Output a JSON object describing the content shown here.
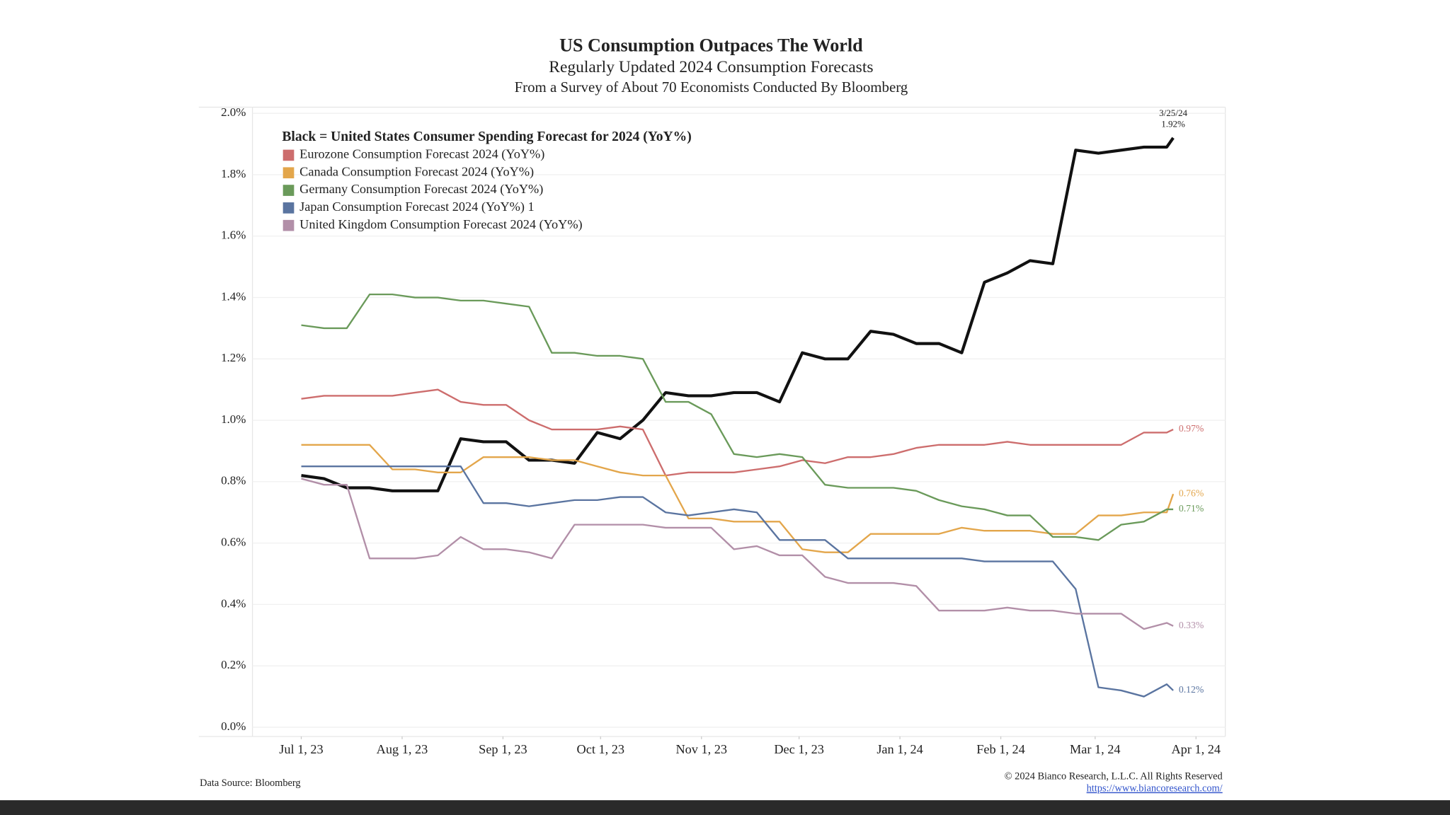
{
  "chart_data": {
    "type": "line",
    "title": "US Consumption Outpaces The World",
    "subtitle": "Regularly Updated 2024 Consumption Forecasts",
    "subtitle2": "From a Survey of About 70 Economists Conducted By Bloomberg",
    "source": "Data Source: Bloomberg",
    "copyright": "© 2024 Bianco Research, L.L.C. All Rights Reserved",
    "url": "https://www.biancoresearch.com/",
    "annotation": "3/25/24",
    "grid": true,
    "legend": "top-left",
    "xlim": [
      "2023-06-16",
      "2024-04-10"
    ],
    "xticks": [
      {
        "value": "2023-07-01",
        "label": "Jul 1, 23"
      },
      {
        "value": "2023-08-01",
        "label": "Aug 1, 23"
      },
      {
        "value": "2023-09-01",
        "label": "Sep 1, 23"
      },
      {
        "value": "2023-10-01",
        "label": "Oct 1, 23"
      },
      {
        "value": "2023-11-01",
        "label": "Nov 1, 23"
      },
      {
        "value": "2023-12-01",
        "label": "Dec 1, 23"
      },
      {
        "value": "2024-01-01",
        "label": "Jan 1, 24"
      },
      {
        "value": "2024-02-01",
        "label": "Feb 1, 24"
      },
      {
        "value": "2024-03-01",
        "label": "Mar 1, 24"
      },
      {
        "value": "2024-04-01",
        "label": "Apr 1, 24"
      }
    ],
    "ylim": [
      -0.03,
      2.02
    ],
    "yticks": [
      {
        "value": 0,
        "label": "0.0%"
      },
      {
        "value": 0.2,
        "label": "0.2%"
      },
      {
        "value": 0.4,
        "label": "0.4%"
      },
      {
        "value": 0.6,
        "label": "0.6%"
      },
      {
        "value": 0.8,
        "label": "0.8%"
      },
      {
        "value": 1.0,
        "label": "1.0%"
      },
      {
        "value": 1.2,
        "label": "1.2%"
      },
      {
        "value": 1.4,
        "label": "1.4%"
      },
      {
        "value": 1.6,
        "label": "1.6%"
      },
      {
        "value": 1.8,
        "label": "1.8%"
      },
      {
        "value": 2.0,
        "label": "2.0%"
      }
    ],
    "x": [
      "2023-07-01",
      "2023-07-08",
      "2023-07-15",
      "2023-07-22",
      "2023-07-29",
      "2023-08-05",
      "2023-08-12",
      "2023-08-19",
      "2023-08-26",
      "2023-09-02",
      "2023-09-09",
      "2023-09-16",
      "2023-09-23",
      "2023-09-30",
      "2023-10-07",
      "2023-10-14",
      "2023-10-21",
      "2023-10-28",
      "2023-11-04",
      "2023-11-11",
      "2023-11-18",
      "2023-11-25",
      "2023-12-02",
      "2023-12-09",
      "2023-12-16",
      "2023-12-23",
      "2023-12-30",
      "2024-01-06",
      "2024-01-13",
      "2024-01-20",
      "2024-01-27",
      "2024-02-03",
      "2024-02-10",
      "2024-02-17",
      "2024-02-24",
      "2024-03-02",
      "2024-03-09",
      "2024-03-16",
      "2024-03-23",
      "2024-03-25"
    ],
    "series": [
      {
        "name": "Black = United States Consumer Spending Forecast for 2024 (YoY%)",
        "color": "#111111",
        "width": 3.2,
        "values": [
          0.82,
          0.81,
          0.78,
          0.78,
          0.77,
          0.77,
          0.77,
          0.94,
          0.93,
          0.93,
          0.87,
          0.87,
          0.86,
          0.96,
          0.94,
          1.0,
          1.09,
          1.08,
          1.08,
          1.09,
          1.09,
          1.06,
          1.22,
          1.2,
          1.2,
          1.29,
          1.28,
          1.25,
          1.25,
          1.22,
          1.45,
          1.48,
          1.52,
          1.51,
          1.88,
          1.87,
          1.88,
          1.89,
          1.89,
          1.92
        ],
        "value_labels": [
          null,
          null,
          null,
          null,
          null,
          null,
          null,
          null,
          null,
          null,
          null,
          null,
          null,
          null,
          null,
          null,
          null,
          null,
          null,
          null,
          null,
          null,
          null,
          null,
          null,
          null,
          null,
          null,
          null,
          null,
          null,
          null,
          null,
          null,
          null,
          null,
          null,
          null,
          null,
          "1.92%"
        ]
      },
      {
        "name": "Eurozone Consumption Forecast 2024 (YoY%)",
        "color": "#cd6d6d",
        "width": 1.8,
        "values": [
          1.07,
          1.08,
          1.08,
          1.08,
          1.08,
          1.09,
          1.1,
          1.06,
          1.05,
          1.05,
          1.0,
          0.97,
          0.97,
          0.97,
          0.98,
          0.97,
          0.82,
          0.83,
          0.83,
          0.83,
          0.84,
          0.85,
          0.87,
          0.86,
          0.88,
          0.88,
          0.89,
          0.91,
          0.92,
          0.92,
          0.92,
          0.93,
          0.92,
          0.92,
          0.92,
          0.92,
          0.92,
          0.96,
          0.96,
          0.97
        ],
        "value_labels": [
          null,
          null,
          null,
          null,
          null,
          null,
          null,
          null,
          null,
          null,
          null,
          null,
          null,
          null,
          null,
          null,
          null,
          null,
          null,
          null,
          null,
          null,
          null,
          null,
          null,
          null,
          null,
          null,
          null,
          null,
          null,
          null,
          null,
          null,
          null,
          null,
          null,
          null,
          null,
          "0.97%"
        ]
      },
      {
        "name": "Canada Consumption Forecast 2024 (YoY%)",
        "color": "#e3a64b",
        "width": 1.8,
        "values": [
          0.92,
          0.92,
          0.92,
          0.92,
          0.84,
          0.84,
          0.83,
          0.83,
          0.88,
          0.88,
          0.88,
          0.87,
          0.87,
          0.85,
          0.83,
          0.82,
          0.82,
          0.68,
          0.68,
          0.67,
          0.67,
          0.67,
          0.58,
          0.57,
          0.57,
          0.63,
          0.63,
          0.63,
          0.63,
          0.65,
          0.64,
          0.64,
          0.64,
          0.63,
          0.63,
          0.69,
          0.69,
          0.7,
          0.7,
          0.76
        ],
        "value_labels": [
          null,
          null,
          null,
          null,
          null,
          null,
          null,
          null,
          null,
          null,
          null,
          null,
          null,
          null,
          null,
          null,
          null,
          null,
          null,
          null,
          null,
          null,
          null,
          null,
          null,
          null,
          null,
          null,
          null,
          null,
          null,
          null,
          null,
          null,
          null,
          null,
          null,
          null,
          null,
          "0.76%"
        ]
      },
      {
        "name": "Germany Consumption Forecast 2024 (YoY%)",
        "color": "#6a9a5a",
        "width": 1.8,
        "values": [
          1.31,
          1.3,
          1.3,
          1.41,
          1.41,
          1.4,
          1.4,
          1.39,
          1.39,
          1.38,
          1.37,
          1.22,
          1.22,
          1.21,
          1.21,
          1.2,
          1.06,
          1.06,
          1.02,
          0.89,
          0.88,
          0.89,
          0.88,
          0.79,
          0.78,
          0.78,
          0.78,
          0.77,
          0.74,
          0.72,
          0.71,
          0.69,
          0.69,
          0.62,
          0.62,
          0.61,
          0.66,
          0.67,
          0.71,
          0.71
        ],
        "value_labels": [
          null,
          null,
          null,
          null,
          null,
          null,
          null,
          null,
          null,
          null,
          null,
          null,
          null,
          null,
          null,
          null,
          null,
          null,
          null,
          null,
          null,
          null,
          null,
          null,
          null,
          null,
          null,
          null,
          null,
          null,
          null,
          null,
          null,
          null,
          null,
          null,
          null,
          null,
          null,
          "0.71%"
        ]
      },
      {
        "name": "Japan Consumption Forecast 2024 (YoY%) 1",
        "color": "#5a74a0",
        "width": 1.8,
        "values": [
          0.85,
          0.85,
          0.85,
          0.85,
          0.85,
          0.85,
          0.85,
          0.85,
          0.73,
          0.73,
          0.72,
          0.73,
          0.74,
          0.74,
          0.75,
          0.75,
          0.7,
          0.69,
          0.7,
          0.71,
          0.7,
          0.61,
          0.61,
          0.61,
          0.55,
          0.55,
          0.55,
          0.55,
          0.55,
          0.55,
          0.54,
          0.54,
          0.54,
          0.54,
          0.45,
          0.13,
          0.12,
          0.1,
          0.14,
          0.12
        ],
        "value_labels": [
          null,
          null,
          null,
          null,
          null,
          null,
          null,
          null,
          null,
          null,
          null,
          null,
          null,
          null,
          null,
          null,
          null,
          null,
          null,
          null,
          null,
          null,
          null,
          null,
          null,
          null,
          null,
          null,
          null,
          null,
          null,
          null,
          null,
          null,
          null,
          null,
          null,
          null,
          null,
          "0.12%"
        ]
      },
      {
        "name": "United Kingdom Consumption Forecast 2024 (YoY%)",
        "color": "#b28fa8",
        "width": 1.8,
        "values": [
          0.81,
          0.79,
          0.79,
          0.55,
          0.55,
          0.55,
          0.56,
          0.62,
          0.58,
          0.58,
          0.57,
          0.55,
          0.66,
          0.66,
          0.66,
          0.66,
          0.65,
          0.65,
          0.65,
          0.58,
          0.59,
          0.56,
          0.56,
          0.49,
          0.47,
          0.47,
          0.47,
          0.46,
          0.38,
          0.38,
          0.38,
          0.39,
          0.38,
          0.38,
          0.37,
          0.37,
          0.37,
          0.32,
          0.34,
          0.33
        ],
        "value_labels": [
          null,
          null,
          null,
          null,
          null,
          null,
          null,
          null,
          null,
          null,
          null,
          null,
          null,
          null,
          null,
          null,
          null,
          null,
          null,
          null,
          null,
          null,
          null,
          null,
          null,
          null,
          null,
          null,
          null,
          null,
          null,
          null,
          null,
          null,
          null,
          null,
          null,
          null,
          null,
          "0.33%"
        ]
      }
    ]
  }
}
